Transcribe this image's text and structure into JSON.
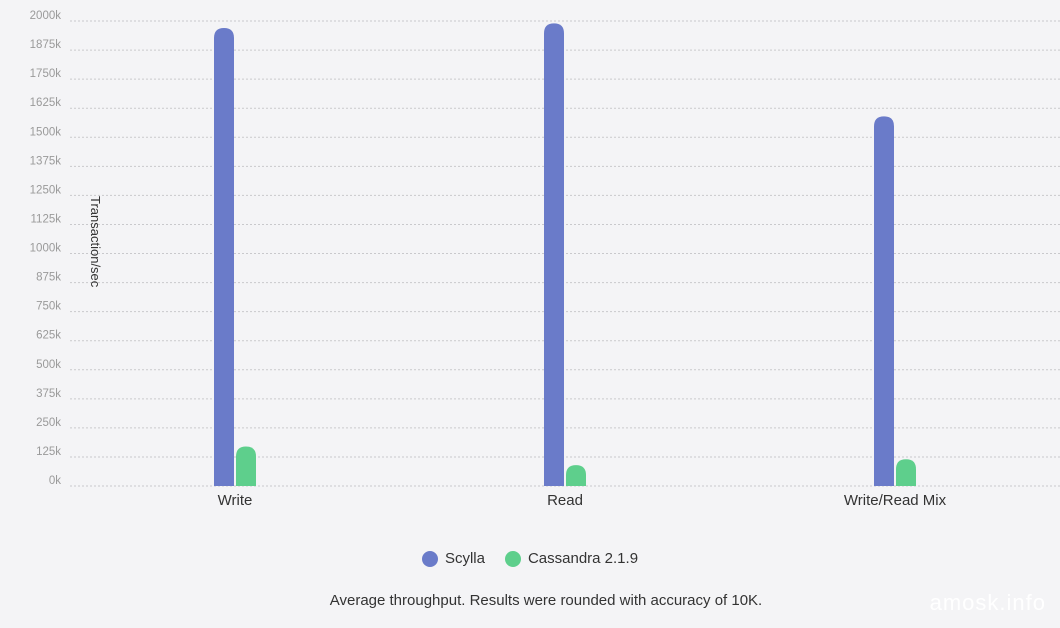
{
  "chart_data": {
    "type": "bar",
    "ylabel": "Transaction/sec",
    "ylim": [
      0,
      2000
    ],
    "y_ticks": [
      "0k",
      "125k",
      "250k",
      "375k",
      "500k",
      "625k",
      "750k",
      "875k",
      "1000k",
      "1125k",
      "1250k",
      "1375k",
      "1500k",
      "1625k",
      "1750k",
      "1875k",
      "2000k"
    ],
    "y_tick_step": 125,
    "categories": [
      "Write",
      "Read",
      "Write/Read Mix"
    ],
    "series": [
      {
        "name": "Scylla",
        "color": "#6a7bc9",
        "values": [
          1970,
          1990,
          1590
        ]
      },
      {
        "name": "Cassandra 2.1.9",
        "color": "#5ecf8c",
        "values": [
          170,
          90,
          115
        ]
      }
    ],
    "grid": true,
    "legend_position": "bottom"
  },
  "caption": "Average throughput. Results were rounded with accuracy of 10K.",
  "watermark": "amosk.info"
}
